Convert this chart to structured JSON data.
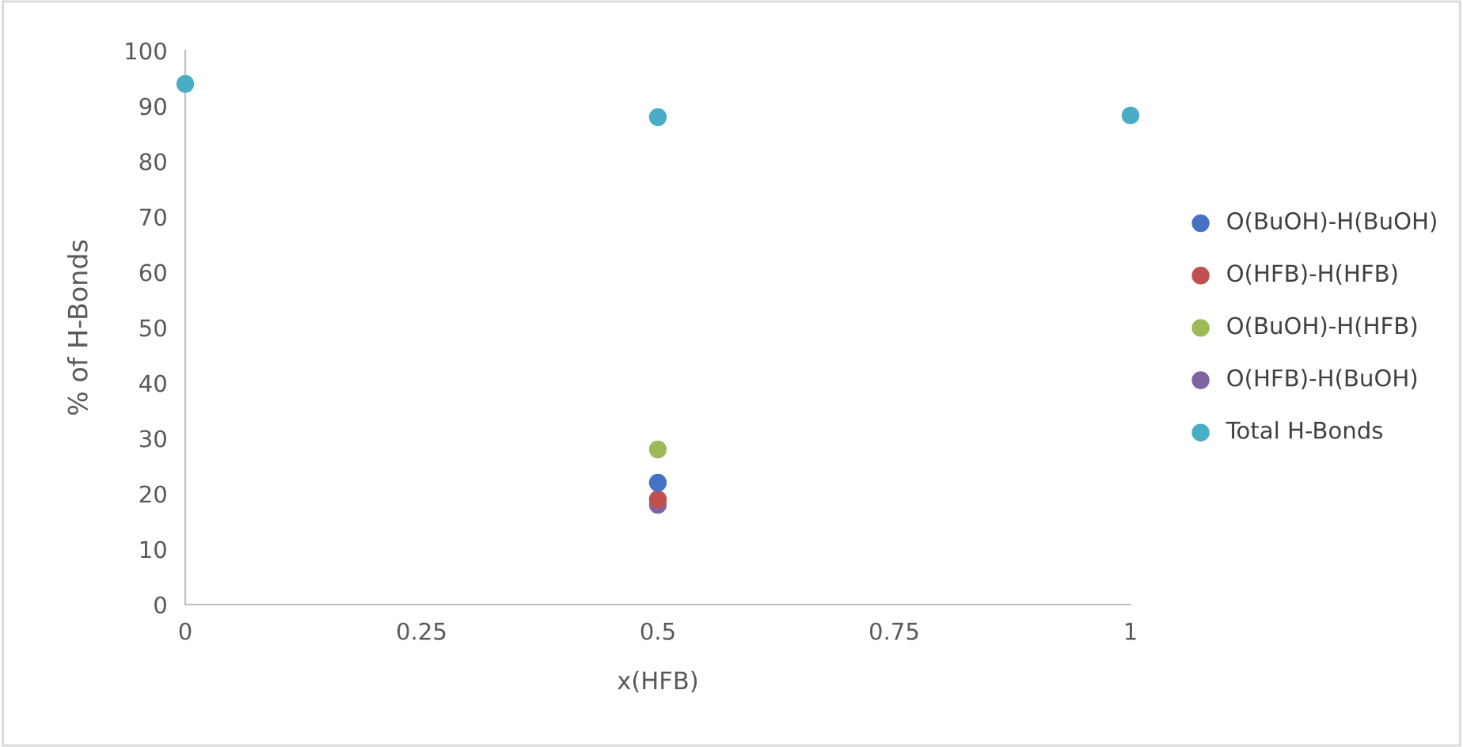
{
  "chart_data": {
    "type": "scatter",
    "xlabel": "x(HFB)",
    "ylabel": "% of H-Bonds",
    "x": [
      0,
      0.5,
      1
    ],
    "series": [
      {
        "name": "O(BuOH)-H(BuOH)",
        "color": "#4472c4",
        "values": [
          null,
          22,
          null
        ]
      },
      {
        "name": "O(HFB)-H(HFB)",
        "color": "#c0504d",
        "values": [
          null,
          19,
          null
        ]
      },
      {
        "name": "O(BuOH)-H(HFB)",
        "color": "#9bbb59",
        "values": [
          null,
          28,
          null
        ]
      },
      {
        "name": "O(HFB)-H(BuOH)",
        "color": "#8064a2",
        "values": [
          null,
          18,
          null
        ]
      },
      {
        "name": "Total H-Bonds",
        "color": "#4bacc6",
        "values": [
          94,
          88,
          88.3
        ]
      }
    ],
    "xlim": [
      0,
      1
    ],
    "xticks": [
      0,
      0.25,
      0.5,
      0.75,
      1
    ],
    "ylim": [
      0,
      100
    ],
    "yticks": [
      0,
      10,
      20,
      30,
      40,
      50,
      60,
      70,
      80,
      90,
      100
    ],
    "marker": "circle",
    "grid": false,
    "legend": "right"
  }
}
